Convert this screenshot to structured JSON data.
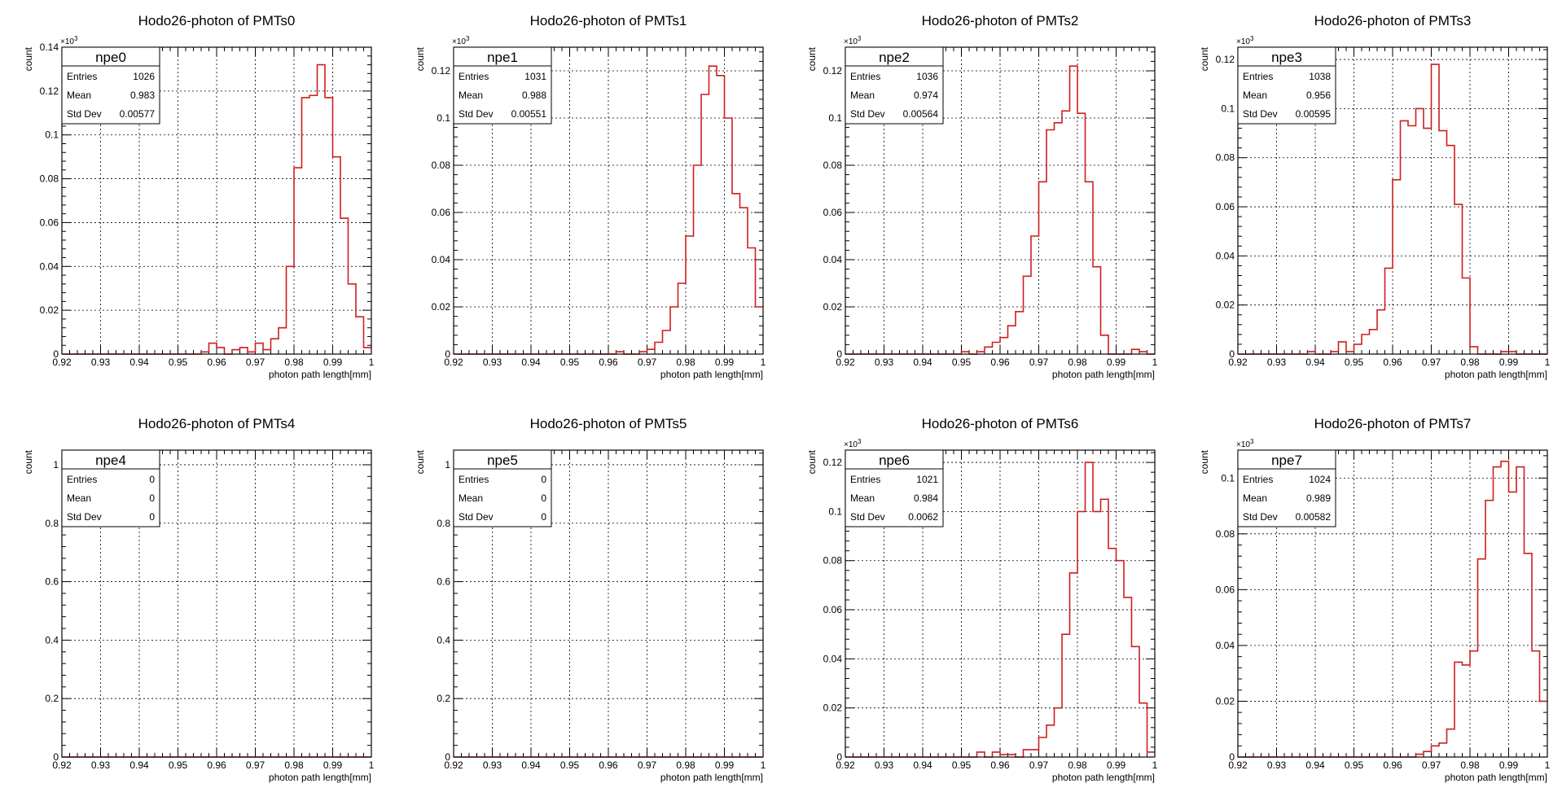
{
  "colors": {
    "histogram": "#cc1f1f",
    "frame": "#000000",
    "grid": "#000000",
    "background": "#ffffff"
  },
  "common": {
    "xlabel": "photon path length[mm]",
    "ylabel": "count",
    "stat_labels": {
      "entries": "Entries",
      "mean": "Mean",
      "std": "Std Dev"
    }
  },
  "chart_data": [
    {
      "type": "bar",
      "title": "Hodo26-photon of PMTs0",
      "stat_name": "npe0",
      "xlim": [
        0.92,
        1.0
      ],
      "ylim": [
        0,
        0.14
      ],
      "y_exponent": "3",
      "xticks": [
        "0.92",
        "0.93",
        "0.94",
        "0.95",
        "0.96",
        "0.97",
        "0.98",
        "0.99",
        "1"
      ],
      "yticks": [
        "0",
        "0.02",
        "0.04",
        "0.06",
        "0.08",
        "0.1",
        "0.12",
        "0.14"
      ],
      "stats": {
        "entries": "1026",
        "mean": "0.983",
        "std": "0.00577"
      },
      "grid": true,
      "bin_width": 0.002,
      "bin_start": 0.92,
      "values": [
        0,
        0,
        0,
        0,
        0,
        0,
        0,
        0,
        0,
        0,
        0,
        0,
        0,
        0,
        0,
        0,
        0,
        0,
        0.001,
        0.005,
        0.003,
        0,
        0.002,
        0.003,
        0.001,
        0.005,
        0.002,
        0.007,
        0.012,
        0.04,
        0.085,
        0.117,
        0.118,
        0.132,
        0.117,
        0.09,
        0.062,
        0.032,
        0.017,
        0.003
      ]
    },
    {
      "type": "bar",
      "title": "Hodo26-photon of PMTs1",
      "stat_name": "npe1",
      "xlim": [
        0.92,
        1.0
      ],
      "ylim": [
        0,
        0.13
      ],
      "y_exponent": "3",
      "xticks": [
        "0.92",
        "0.93",
        "0.94",
        "0.95",
        "0.96",
        "0.97",
        "0.98",
        "0.99",
        "1"
      ],
      "yticks": [
        "0",
        "0.02",
        "0.04",
        "0.06",
        "0.08",
        "0.1",
        "0.12"
      ],
      "stats": {
        "entries": "1031",
        "mean": "0.988",
        "std": "0.00551"
      },
      "grid": true,
      "bin_width": 0.002,
      "bin_start": 0.92,
      "values": [
        0,
        0,
        0,
        0,
        0,
        0,
        0,
        0,
        0,
        0,
        0,
        0,
        0,
        0,
        0,
        0,
        0,
        0,
        0,
        0,
        0,
        0.001,
        0,
        0,
        0.001,
        0.002,
        0.005,
        0.01,
        0.02,
        0.03,
        0.05,
        0.08,
        0.11,
        0.122,
        0.118,
        0.1,
        0.068,
        0.062,
        0.045,
        0.02
      ]
    },
    {
      "type": "bar",
      "title": "Hodo26-photon of PMTs2",
      "stat_name": "npe2",
      "xlim": [
        0.92,
        1.0
      ],
      "ylim": [
        0,
        0.13
      ],
      "y_exponent": "3",
      "xticks": [
        "0.92",
        "0.93",
        "0.94",
        "0.95",
        "0.96",
        "0.97",
        "0.98",
        "0.99",
        "1"
      ],
      "yticks": [
        "0",
        "0.02",
        "0.04",
        "0.06",
        "0.08",
        "0.1",
        "0.12"
      ],
      "stats": {
        "entries": "1036",
        "mean": "0.974",
        "std": "0.00564"
      },
      "grid": true,
      "bin_width": 0.002,
      "bin_start": 0.92,
      "values": [
        0,
        0,
        0,
        0,
        0,
        0,
        0,
        0,
        0,
        0,
        0,
        0,
        0,
        0,
        0,
        0.001,
        0,
        0.001,
        0.003,
        0.005,
        0.007,
        0.012,
        0.018,
        0.033,
        0.05,
        0.073,
        0.095,
        0.098,
        0.103,
        0.122,
        0.102,
        0.073,
        0.037,
        0.008,
        0,
        0,
        0,
        0.002,
        0.001,
        0
      ]
    },
    {
      "type": "bar",
      "title": "Hodo26-photon of PMTs3",
      "stat_name": "npe3",
      "xlim": [
        0.92,
        1.0
      ],
      "ylim": [
        0,
        0.125
      ],
      "y_exponent": "3",
      "xticks": [
        "0.92",
        "0.93",
        "0.94",
        "0.95",
        "0.96",
        "0.97",
        "0.98",
        "0.99",
        "1"
      ],
      "yticks": [
        "0",
        "0.02",
        "0.04",
        "0.06",
        "0.08",
        "0.1",
        "0.12"
      ],
      "stats": {
        "entries": "1038",
        "mean": "0.956",
        "std": "0.00595"
      },
      "grid": true,
      "bin_width": 0.002,
      "bin_start": 0.92,
      "values": [
        0,
        0,
        0,
        0,
        0,
        0,
        0,
        0,
        0,
        0.001,
        0,
        0,
        0.001,
        0.005,
        0.001,
        0.004,
        0.008,
        0.01,
        0.018,
        0.035,
        0.071,
        0.095,
        0.093,
        0.1,
        0.092,
        0.118,
        0.091,
        0.085,
        0.061,
        0.031,
        0.003,
        0,
        0,
        0,
        0.001,
        0.001,
        0,
        0,
        0,
        0
      ]
    },
    {
      "type": "bar",
      "title": "Hodo26-photon of PMTs4",
      "stat_name": "npe4",
      "xlim": [
        0.92,
        1.0
      ],
      "ylim": [
        0,
        1.05
      ],
      "y_exponent": "",
      "xticks": [
        "0.92",
        "0.93",
        "0.94",
        "0.95",
        "0.96",
        "0.97",
        "0.98",
        "0.99",
        "1"
      ],
      "yticks": [
        "0",
        "0.2",
        "0.4",
        "0.6",
        "0.8",
        "1"
      ],
      "stats": {
        "entries": "0",
        "mean": "0",
        "std": "0"
      },
      "grid": true,
      "bin_width": 0.002,
      "bin_start": 0.92,
      "values": [
        0,
        0,
        0,
        0,
        0,
        0,
        0,
        0,
        0,
        0,
        0,
        0,
        0,
        0,
        0,
        0,
        0,
        0,
        0,
        0,
        0,
        0,
        0,
        0,
        0,
        0,
        0,
        0,
        0,
        0,
        0,
        0,
        0,
        0,
        0,
        0,
        0,
        0,
        0,
        0
      ]
    },
    {
      "type": "bar",
      "title": "Hodo26-photon of PMTs5",
      "stat_name": "npe5",
      "xlim": [
        0.92,
        1.0
      ],
      "ylim": [
        0,
        1.05
      ],
      "y_exponent": "",
      "xticks": [
        "0.92",
        "0.93",
        "0.94",
        "0.95",
        "0.96",
        "0.97",
        "0.98",
        "0.99",
        "1"
      ],
      "yticks": [
        "0",
        "0.2",
        "0.4",
        "0.6",
        "0.8",
        "1"
      ],
      "stats": {
        "entries": "0",
        "mean": "0",
        "std": "0"
      },
      "grid": true,
      "bin_width": 0.002,
      "bin_start": 0.92,
      "values": [
        0,
        0,
        0,
        0,
        0,
        0,
        0,
        0,
        0,
        0,
        0,
        0,
        0,
        0,
        0,
        0,
        0,
        0,
        0,
        0,
        0,
        0,
        0,
        0,
        0,
        0,
        0,
        0,
        0,
        0,
        0,
        0,
        0,
        0,
        0,
        0,
        0,
        0,
        0,
        0
      ]
    },
    {
      "type": "bar",
      "title": "Hodo26-photon of PMTs6",
      "stat_name": "npe6",
      "xlim": [
        0.92,
        1.0
      ],
      "ylim": [
        0,
        0.125
      ],
      "y_exponent": "3",
      "xticks": [
        "0.92",
        "0.93",
        "0.94",
        "0.95",
        "0.96",
        "0.97",
        "0.98",
        "0.99",
        "1"
      ],
      "yticks": [
        "0",
        "0.02",
        "0.04",
        "0.06",
        "0.08",
        "0.1",
        "0.12"
      ],
      "stats": {
        "entries": "1021",
        "mean": "0.984",
        "std": "0.0062"
      },
      "grid": true,
      "bin_width": 0.002,
      "bin_start": 0.92,
      "values": [
        0,
        0,
        0,
        0,
        0,
        0,
        0,
        0,
        0,
        0,
        0,
        0,
        0,
        0,
        0,
        0,
        0,
        0.002,
        0,
        0.002,
        0.001,
        0.001,
        0,
        0.003,
        0.003,
        0.008,
        0.013,
        0.02,
        0.05,
        0.075,
        0.1,
        0.12,
        0.1,
        0.105,
        0.085,
        0.08,
        0.065,
        0.045,
        0.022,
        0.002
      ]
    },
    {
      "type": "bar",
      "title": "Hodo26-photon of PMTs7",
      "stat_name": "npe7",
      "xlim": [
        0.92,
        1.0
      ],
      "ylim": [
        0,
        0.11
      ],
      "y_exponent": "3",
      "xticks": [
        "0.92",
        "0.93",
        "0.94",
        "0.95",
        "0.96",
        "0.97",
        "0.98",
        "0.99",
        "1"
      ],
      "yticks": [
        "0",
        "0.02",
        "0.04",
        "0.06",
        "0.08",
        "0.1"
      ],
      "stats": {
        "entries": "1024",
        "mean": "0.989",
        "std": "0.00582"
      },
      "grid": true,
      "bin_width": 0.002,
      "bin_start": 0.92,
      "values": [
        0,
        0,
        0,
        0,
        0,
        0,
        0,
        0,
        0,
        0,
        0,
        0,
        0,
        0,
        0,
        0,
        0,
        0,
        0,
        0,
        0,
        0,
        0,
        0.001,
        0.002,
        0.004,
        0.005,
        0.01,
        0.034,
        0.033,
        0.038,
        0.071,
        0.092,
        0.104,
        0.106,
        0.095,
        0.104,
        0.073,
        0.038,
        0.02
      ]
    }
  ]
}
